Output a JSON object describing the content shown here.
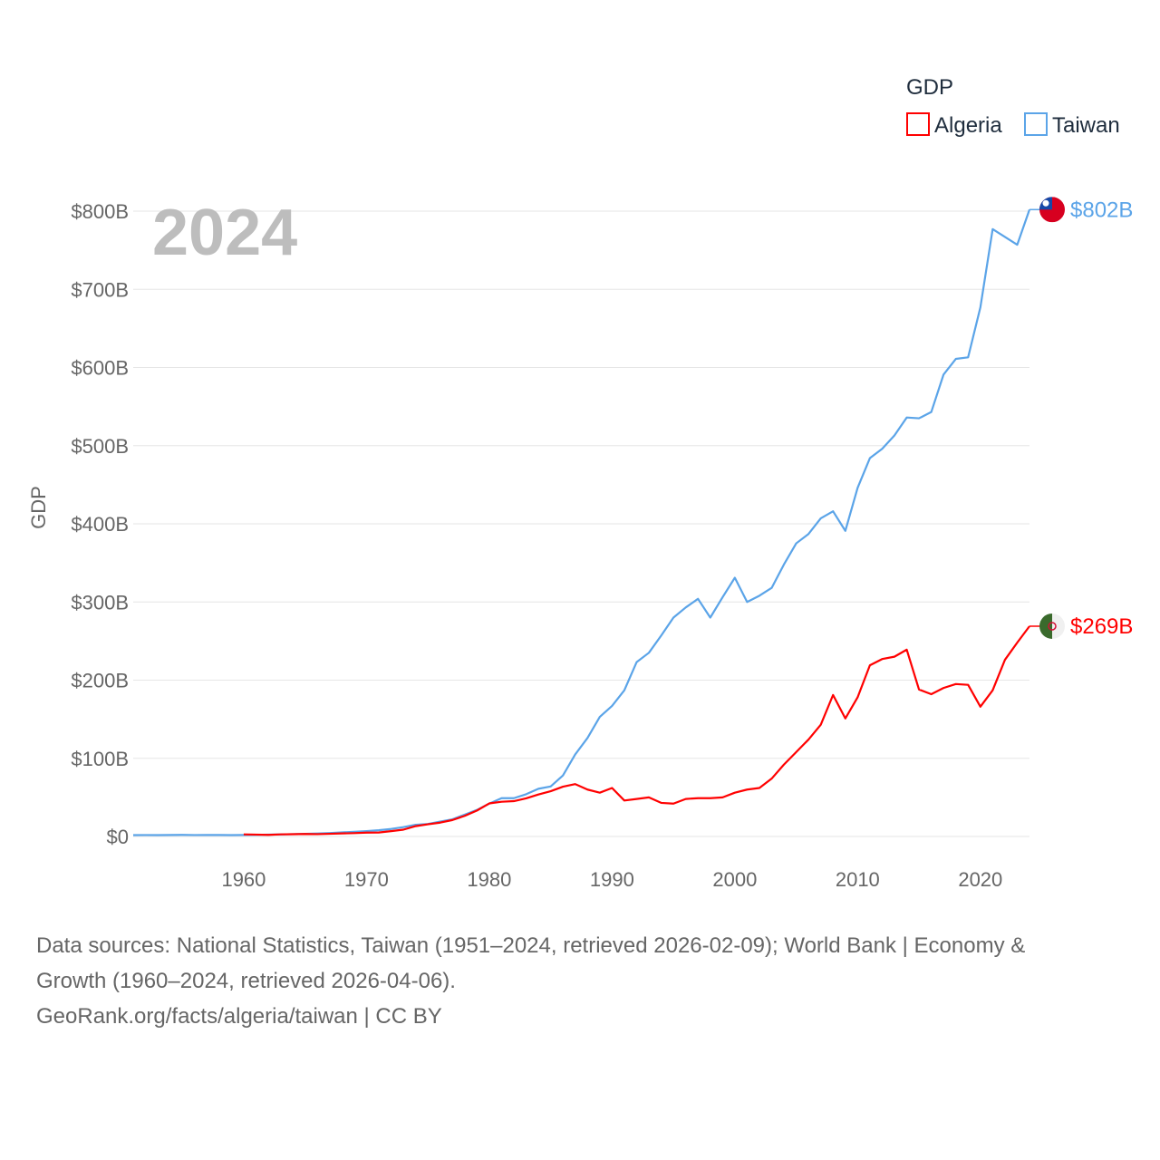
{
  "chart_data": {
    "type": "line",
    "year_label": "2024",
    "ylabel": "GDP",
    "legend": {
      "title": "GDP",
      "position": "top-right",
      "entries": [
        "Algeria",
        "Taiwan"
      ]
    },
    "xlim": [
      1951,
      2024
    ],
    "ylim": [
      0,
      800
    ],
    "x_ticks": [
      1960,
      1970,
      1980,
      1990,
      2000,
      2010,
      2020
    ],
    "y_ticks": [
      0,
      100,
      200,
      300,
      400,
      500,
      600,
      700,
      800
    ],
    "y_tick_labels": [
      "$0",
      "$100B",
      "$200B",
      "$300B",
      "$400B",
      "$500B",
      "$600B",
      "$700B",
      "$800B"
    ],
    "grid": true,
    "series": [
      {
        "name": "Taiwan",
        "color": "#5ba4e8",
        "end_label": "$802B",
        "flag": "taiwan-flag",
        "start_year": 1951,
        "values": [
          1.7,
          1.8,
          1.7,
          1.9,
          2.0,
          1.8,
          1.9,
          1.9,
          1.7,
          1.9,
          2.0,
          2.3,
          2.6,
          3.0,
          3.4,
          3.8,
          4.4,
          5.2,
          6.0,
          6.9,
          8.0,
          9.6,
          12,
          15,
          16,
          19,
          22,
          28,
          34,
          42,
          49,
          49,
          54,
          61,
          64,
          78,
          105,
          126,
          153,
          167,
          187,
          223,
          235,
          257,
          280,
          293,
          304,
          280,
          306,
          331,
          300,
          308,
          318,
          348,
          375,
          387,
          407,
          416,
          391,
          446,
          484,
          496,
          513,
          536,
          535,
          543,
          591,
          611,
          613,
          677,
          777,
          767,
          757,
          802
        ]
      },
      {
        "name": "Algeria",
        "color": "#ff0000",
        "end_label": "$269B",
        "flag": "algeria-flag",
        "start_year": 1960,
        "values": [
          2.7,
          2.4,
          2.0,
          2.7,
          2.9,
          3.2,
          3.0,
          3.4,
          3.9,
          4.3,
          4.9,
          5.1,
          6.8,
          8.7,
          13.2,
          15.6,
          17.7,
          21,
          26.4,
          33.2,
          42.3,
          44.4,
          45.2,
          48.8,
          53.7,
          57.9,
          63.7,
          67,
          60,
          56,
          62,
          46,
          48,
          50,
          43,
          42,
          48,
          49,
          49,
          50,
          56,
          60,
          62,
          74,
          92,
          108,
          124,
          143,
          181,
          151,
          178,
          219,
          227,
          230,
          239,
          188,
          182,
          190,
          195,
          194,
          166,
          187,
          226,
          248,
          269
        ]
      }
    ]
  },
  "source": {
    "line1": "Data sources: National Statistics, Taiwan (1951–2024, retrieved 2026-02-09); World Bank | Economy &",
    "line2": "Growth (1960–2024, retrieved 2026-04-06).",
    "line3": "GeoRank.org/facts/algeria/taiwan | CC BY"
  }
}
